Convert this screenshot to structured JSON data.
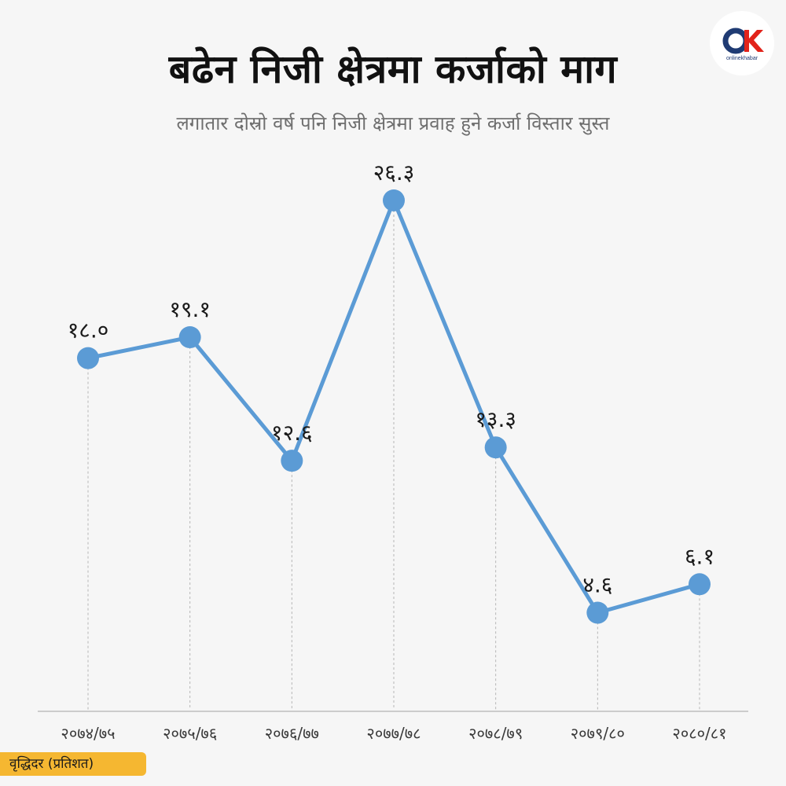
{
  "header": {
    "title": "बढेन निजी क्षेत्रमा कर्जाको माग",
    "subtitle": "लगातार दोस्रो वर्ष पनि निजी क्षेत्रमा प्रवाह हुने कर्जा विस्तार सुस्त"
  },
  "logo": {
    "icon": "onlinekhabar-logo-icon",
    "brand_text": "onlinekhabar"
  },
  "legend": {
    "label": "वृद्धिदर (प्रतिशत)"
  },
  "colors": {
    "line": "#5b9bd5",
    "accent": "#f5b731",
    "axis": "#cccccc"
  },
  "chart_data": {
    "type": "line",
    "categories": [
      "२०७४/७५",
      "२०७५/७६",
      "२०७६/७७",
      "२०७७/७८",
      "२०७८/७९",
      "२०७९/८०",
      "२०८०/८१"
    ],
    "values": [
      18.0,
      19.1,
      12.6,
      26.3,
      13.3,
      4.6,
      6.1
    ],
    "value_labels": [
      "१८.०",
      "१९.१",
      "१२.६",
      "२६.३",
      "१३.३",
      "४.६",
      "६.१"
    ],
    "ylim": [
      -0.3,
      26.3
    ],
    "grid": "dashed vertical drop lines",
    "legend": "bottom-left"
  }
}
